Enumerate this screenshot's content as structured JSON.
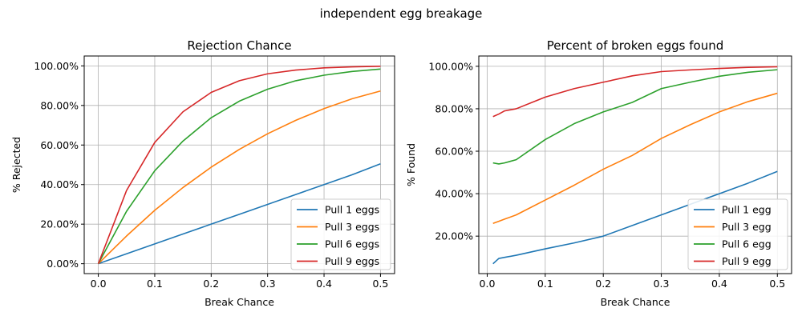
{
  "figure": {
    "suptitle": "independent egg breakage"
  },
  "colors": {
    "blue": "#1f77b4",
    "orange": "#ff7f0e",
    "green": "#2ca02c",
    "red": "#d62728",
    "grid": "#b0b0b0"
  },
  "chart_data": [
    {
      "type": "line",
      "title": "Rejection Chance",
      "xlabel": "Break Chance",
      "ylabel": "% Rejected",
      "xlim": [
        -0.025,
        0.525
      ],
      "ylim": [
        -0.05,
        1.05
      ],
      "xticks": [
        0.0,
        0.1,
        0.2,
        0.3,
        0.4,
        0.5
      ],
      "xtick_labels": [
        "0.0",
        "0.1",
        "0.2",
        "0.3",
        "0.4",
        "0.5"
      ],
      "yticks": [
        0.0,
        0.2,
        0.4,
        0.6,
        0.8,
        1.0
      ],
      "ytick_labels": [
        "0.00%",
        "20.00%",
        "40.00%",
        "60.00%",
        "80.00%",
        "100.00%"
      ],
      "grid": true,
      "legend_placement": "lower-right",
      "x": [
        0.0,
        0.05,
        0.1,
        0.15,
        0.2,
        0.25,
        0.3,
        0.35,
        0.4,
        0.45,
        0.5
      ],
      "series": [
        {
          "name": "Pull 1 eggs",
          "color": "#1f77b4",
          "values": [
            0.0,
            0.05,
            0.1,
            0.15,
            0.2,
            0.25,
            0.3,
            0.35,
            0.4,
            0.45,
            0.505
          ]
        },
        {
          "name": "Pull 3 eggs",
          "color": "#ff7f0e",
          "values": [
            0.0,
            0.14,
            0.27,
            0.385,
            0.488,
            0.578,
            0.657,
            0.725,
            0.784,
            0.834,
            0.873
          ]
        },
        {
          "name": "Pull 6 eggs",
          "color": "#2ca02c",
          "values": [
            0.0,
            0.265,
            0.47,
            0.62,
            0.738,
            0.822,
            0.882,
            0.925,
            0.953,
            0.972,
            0.984
          ]
        },
        {
          "name": "Pull 9 eggs",
          "color": "#d62728",
          "values": [
            0.0,
            0.37,
            0.613,
            0.768,
            0.866,
            0.925,
            0.96,
            0.979,
            0.99,
            0.995,
            0.998
          ]
        }
      ]
    },
    {
      "type": "line",
      "title": "Percent of broken eggs found",
      "xlabel": "Break Chance",
      "ylabel": "% Found",
      "xlim": [
        -0.0145,
        0.5245
      ],
      "ylim": [
        0.0235,
        1.0485
      ],
      "xticks": [
        0.0,
        0.1,
        0.2,
        0.3,
        0.4,
        0.5
      ],
      "xtick_labels": [
        "0.0",
        "0.1",
        "0.2",
        "0.3",
        "0.4",
        "0.5"
      ],
      "yticks": [
        0.2,
        0.4,
        0.6,
        0.8,
        1.0
      ],
      "ytick_labels": [
        "20.00%",
        "40.00%",
        "60.00%",
        "80.00%",
        "100.00%"
      ],
      "grid": true,
      "legend_placement": "lower-right",
      "x": [
        0.01,
        0.02,
        0.03,
        0.05,
        0.1,
        0.15,
        0.2,
        0.25,
        0.3,
        0.35,
        0.4,
        0.45,
        0.5
      ],
      "series": [
        {
          "name": "Pull 1 egg",
          "color": "#1f77b4",
          "values": [
            0.07,
            0.095,
            0.1,
            0.11,
            0.14,
            0.168,
            0.2,
            0.25,
            0.3,
            0.35,
            0.4,
            0.45,
            0.505
          ]
        },
        {
          "name": "Pull 3 egg",
          "color": "#ff7f0e",
          "values": [
            0.26,
            0.27,
            0.28,
            0.3,
            0.37,
            0.44,
            0.515,
            0.58,
            0.66,
            0.725,
            0.785,
            0.834,
            0.873
          ]
        },
        {
          "name": "Pull 6 egg",
          "color": "#2ca02c",
          "values": [
            0.545,
            0.54,
            0.545,
            0.56,
            0.655,
            0.73,
            0.785,
            0.83,
            0.895,
            0.925,
            0.953,
            0.972,
            0.984
          ]
        },
        {
          "name": "Pull 9 egg",
          "color": "#d62728",
          "values": [
            0.763,
            0.775,
            0.79,
            0.8,
            0.855,
            0.895,
            0.925,
            0.955,
            0.975,
            0.983,
            0.99,
            0.995,
            0.998
          ]
        }
      ]
    }
  ]
}
